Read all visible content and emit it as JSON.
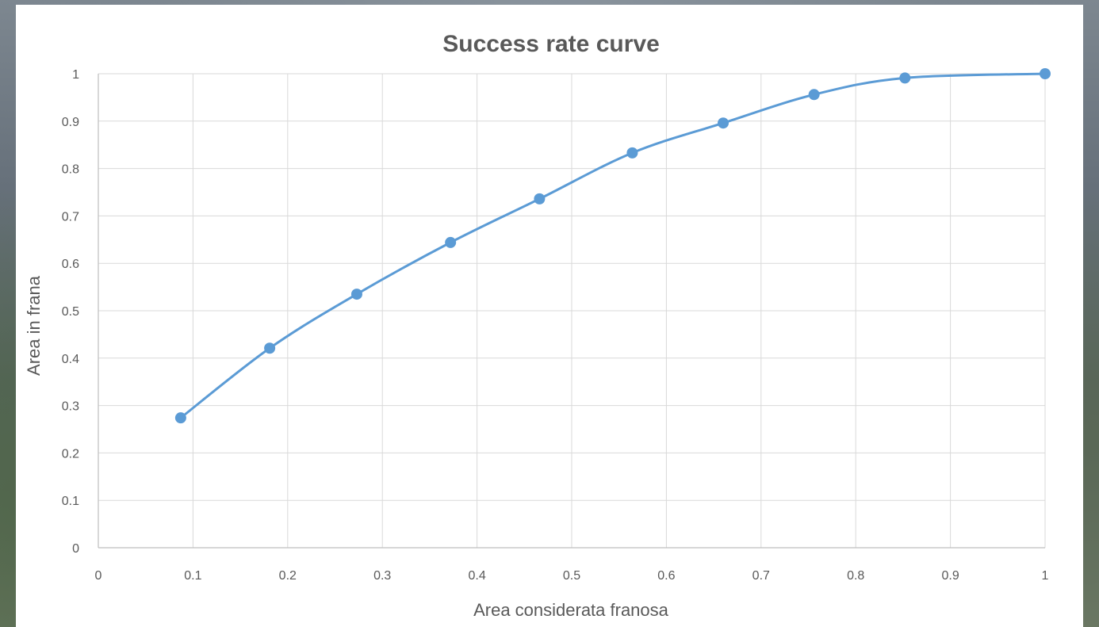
{
  "chart_data": {
    "type": "line",
    "title": "Success rate curve",
    "xlabel": "Area considerata franosa",
    "ylabel": "Area in frana",
    "xlim": [
      0,
      1
    ],
    "ylim": [
      0,
      1
    ],
    "x_ticks": [
      "0",
      "0.1",
      "0.2",
      "0.3",
      "0.4",
      "0.5",
      "0.6",
      "0.7",
      "0.8",
      "0.9",
      "1"
    ],
    "y_ticks": [
      "0",
      "0.1",
      "0.2",
      "0.3",
      "0.4",
      "0.5",
      "0.6",
      "0.7",
      "0.8",
      "0.9",
      "1"
    ],
    "grid": true,
    "smooth": true,
    "markers": true,
    "series": [
      {
        "x": [
          0.087,
          0.181,
          0.273,
          0.372,
          0.466,
          0.564,
          0.66,
          0.756,
          0.852,
          1.0
        ],
        "y": [
          0.274,
          0.421,
          0.535,
          0.644,
          0.736,
          0.833,
          0.896,
          0.956,
          0.991,
          1.0
        ],
        "color": "#5b9bd5"
      }
    ],
    "colors": {
      "gridline": "#d9d9d9",
      "axis": "#bfbfbf",
      "text": "#595959"
    }
  }
}
